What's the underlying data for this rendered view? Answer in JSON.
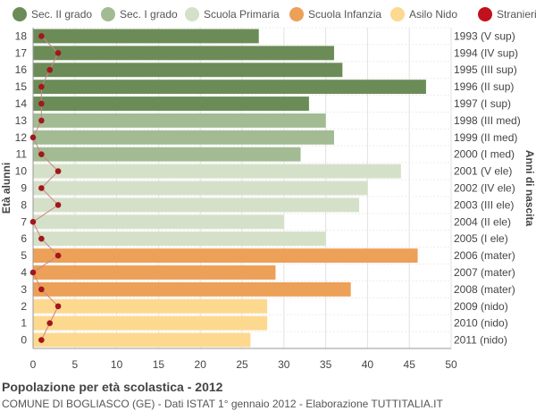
{
  "legend": [
    {
      "label": "Sec. II grado",
      "color": "#6b8c57"
    },
    {
      "label": "Sec. I grado",
      "color": "#a2bb93"
    },
    {
      "label": "Scuola Primaria",
      "color": "#d5e0c8"
    },
    {
      "label": "Scuola Infanzia",
      "color": "#eda057"
    },
    {
      "label": "Asilo Nido",
      "color": "#fdd88f"
    },
    {
      "label": "Stranieri",
      "color": "#c0111c"
    }
  ],
  "footer": {
    "title": "Popolazione per età scolastica - 2012",
    "subtitle": "COMUNE DI BOGLIASCO (GE) - Dati ISTAT 1° gennaio 2012 - Elaborazione TUTTITALIA.IT"
  },
  "chart_data": {
    "type": "bar",
    "orientation": "horizontal",
    "ylabel": "Età alunni",
    "ylabel_right": "Anni di nascita",
    "xlim": [
      0,
      50
    ],
    "xticks": [
      0,
      5,
      10,
      15,
      20,
      25,
      30,
      35,
      40,
      45,
      50
    ],
    "grid": true,
    "legend_position": "top",
    "categories": [
      "18",
      "17",
      "16",
      "15",
      "14",
      "13",
      "12",
      "11",
      "10",
      "9",
      "8",
      "7",
      "6",
      "5",
      "4",
      "3",
      "2",
      "1",
      "0"
    ],
    "birth_years": [
      "1993 (V sup)",
      "1994 (IV sup)",
      "1995 (III sup)",
      "1996 (II sup)",
      "1997 (I sup)",
      "1998 (III med)",
      "1999 (II med)",
      "2000 (I med)",
      "2001 (V ele)",
      "2002 (IV ele)",
      "2003 (III ele)",
      "2004 (II ele)",
      "2005 (I ele)",
      "2006 (mater)",
      "2007 (mater)",
      "2008 (mater)",
      "2009 (nido)",
      "2010 (nido)",
      "2011 (nido)"
    ],
    "values": [
      27,
      36,
      37,
      47,
      33,
      35,
      36,
      32,
      44,
      40,
      39,
      30,
      35,
      46,
      29,
      38,
      28,
      28,
      26
    ],
    "groups": [
      "Sec. II grado",
      "Sec. II grado",
      "Sec. II grado",
      "Sec. II grado",
      "Sec. II grado",
      "Sec. I grado",
      "Sec. I grado",
      "Sec. I grado",
      "Scuola Primaria",
      "Scuola Primaria",
      "Scuola Primaria",
      "Scuola Primaria",
      "Scuola Primaria",
      "Scuola Infanzia",
      "Scuola Infanzia",
      "Scuola Infanzia",
      "Asilo Nido",
      "Asilo Nido",
      "Asilo Nido"
    ],
    "stranieri": [
      1,
      3,
      2,
      1,
      1,
      1,
      0,
      1,
      3,
      1,
      3,
      0,
      1,
      3,
      0,
      1,
      3,
      2,
      1
    ]
  }
}
